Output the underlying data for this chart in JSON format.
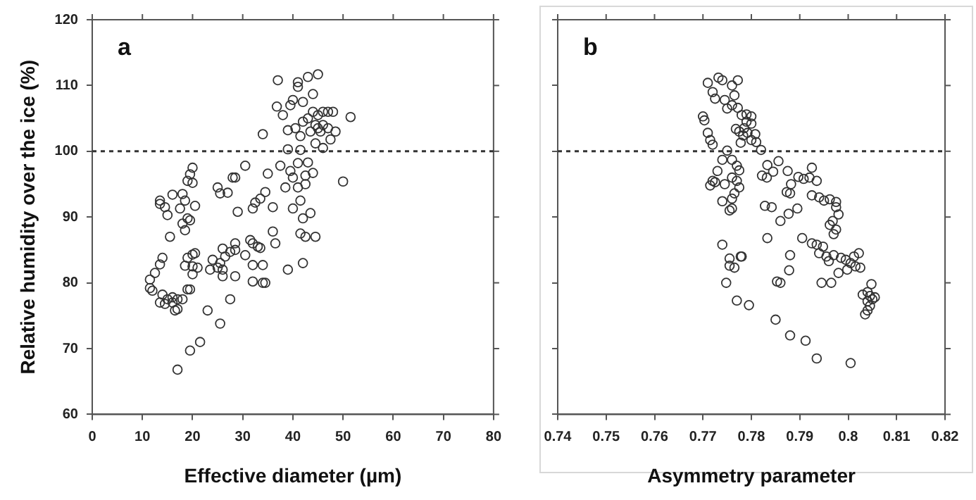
{
  "chart_data": [
    {
      "type": "scatter",
      "xlabel": "Effective diameter (µm)",
      "ylabel": "Relative humidity over the ice (%)",
      "annotations": [
        "a"
      ],
      "xlim": [
        0,
        80
      ],
      "xticks": [
        0,
        10,
        20,
        30,
        40,
        50,
        60,
        70,
        80
      ],
      "ylim": [
        60,
        120
      ],
      "yticks": [
        60,
        70,
        80,
        90,
        100,
        110,
        120
      ],
      "grid": false,
      "legend": false,
      "marker": "circle",
      "ref_lines": [
        {
          "axis": "y",
          "value": 100,
          "line_style": "dashed",
          "color": "#333333"
        }
      ],
      "series": [
        {
          "color": "#333333",
          "x": [
            37,
            41,
            43,
            45,
            41,
            44,
            36.8,
            38,
            39.5,
            40,
            42,
            43,
            44,
            45,
            46,
            47,
            48,
            51.5,
            34,
            39,
            40.5,
            42,
            43.5,
            44.5,
            45,
            45.5,
            46,
            47,
            48.5,
            47.5,
            44.5,
            41.5,
            39,
            41.5,
            46,
            37.5,
            39.5,
            41,
            43,
            44,
            42.5,
            40,
            38.5,
            41,
            42.5,
            35,
            30.5,
            50,
            36,
            40,
            41.5,
            42,
            43.5,
            41.5,
            42.5,
            44.5,
            36,
            36.5,
            39,
            42,
            25,
            25.5,
            27,
            28,
            28.5,
            29,
            32,
            32.5,
            33.5,
            34.5,
            31.5,
            32,
            33,
            33.5,
            30.5,
            28.5,
            28.5,
            27.5,
            26,
            26.5,
            25.5,
            24,
            23.5,
            25,
            26,
            26,
            28.5,
            32,
            34,
            32,
            34,
            34.5,
            27.5,
            23,
            25.5,
            21.5,
            19.5,
            17,
            13.5,
            13.5,
            14.5,
            15,
            16,
            17.5,
            18,
            18.5,
            19,
            19.5,
            20,
            20,
            20.5,
            18,
            19,
            19.5,
            18.5,
            15.5,
            20,
            20.5,
            19,
            18.5,
            20,
            20,
            21,
            14,
            13.5,
            12.5,
            11.5,
            11.5,
            12,
            13.5,
            14,
            15,
            16,
            16,
            17,
            18,
            19,
            19.5,
            17,
            16.5,
            14.5
          ],
          "values": [
            110.8,
            110.5,
            111.3,
            111.7,
            109.8,
            108.7,
            106.8,
            105.5,
            107,
            107.8,
            107.5,
            105,
            106,
            105.5,
            106,
            106,
            106,
            105.2,
            102.6,
            103.2,
            103.5,
            104.5,
            103,
            104,
            103.5,
            103,
            104,
            103.5,
            103,
            101.8,
            101.2,
            102.3,
            100.3,
            100.2,
            100.5,
            97.8,
            97,
            98.2,
            98.3,
            96.7,
            96.3,
            96,
            94.5,
            94.5,
            95,
            96.6,
            97.8,
            95.4,
            91.5,
            91.3,
            92.5,
            89.8,
            90.6,
            87.5,
            87,
            87,
            87.8,
            86,
            82,
            83,
            94.5,
            93.6,
            93.7,
            96,
            96,
            90.8,
            91.3,
            92.2,
            92.8,
            93.8,
            86.5,
            86,
            85.5,
            85.3,
            84.2,
            86,
            85,
            84.7,
            85.2,
            84,
            83,
            83.5,
            82,
            82.3,
            82,
            81,
            81,
            82.7,
            82.7,
            80.2,
            80,
            80,
            77.5,
            75.8,
            73.8,
            71,
            69.7,
            66.8,
            92.5,
            92,
            91.5,
            90.3,
            93.4,
            91.3,
            93.5,
            92.5,
            95.5,
            96.5,
            97.5,
            95.2,
            91.7,
            89,
            89.8,
            89.5,
            88,
            87,
            84.3,
            84.5,
            83.8,
            82.6,
            82.5,
            81.3,
            82.3,
            83.8,
            82.8,
            81.5,
            80.5,
            79.2,
            78.8,
            77,
            78.2,
            77.5,
            77.8,
            77,
            77.5,
            77.5,
            79,
            79,
            76,
            75.8,
            76.8
          ]
        }
      ]
    },
    {
      "type": "scatter",
      "xlabel": "Asymmetry parameter",
      "annotations": [
        "b"
      ],
      "xlim": [
        0.74,
        0.82
      ],
      "xticks": [
        0.74,
        0.75,
        0.76,
        0.77,
        0.78,
        0.79,
        0.8,
        0.81,
        0.82
      ],
      "ylim": [
        60,
        120
      ],
      "yticks": [
        60,
        70,
        80,
        90,
        100,
        110,
        120
      ],
      "tick_labels": "x",
      "grid": false,
      "legend": false,
      "marker": "circle",
      "ref_lines": [
        {
          "axis": "y",
          "value": 100,
          "line_style": "dashed",
          "color": "#333333"
        }
      ],
      "series": [
        {
          "color": "#333333",
          "x": [
            0.771,
            0.7732,
            0.774,
            0.776,
            0.7772,
            0.772,
            0.7725,
            0.7745,
            0.7765,
            0.776,
            0.775,
            0.7772,
            0.77,
            0.7703,
            0.778,
            0.779,
            0.78,
            0.779,
            0.78,
            0.7768,
            0.7775,
            0.7785,
            0.7792,
            0.7783,
            0.7808,
            0.78,
            0.7778,
            0.771,
            0.7715,
            0.772,
            0.781,
            0.782,
            0.775,
            0.774,
            0.776,
            0.777,
            0.7775,
            0.773,
            0.772,
            0.7725,
            0.7715,
            0.7745,
            0.776,
            0.777,
            0.7775,
            0.7765,
            0.774,
            0.776,
            0.776,
            0.7755,
            0.7833,
            0.7822,
            0.7832,
            0.7845,
            0.7856,
            0.7875,
            0.7882,
            0.7873,
            0.788,
            0.7897,
            0.7908,
            0.792,
            0.7925,
            0.7935,
            0.7925,
            0.794,
            0.795,
            0.7962,
            0.7975,
            0.7975,
            0.798,
            0.7968,
            0.7962,
            0.7975,
            0.797,
            0.7828,
            0.7842,
            0.786,
            0.7877,
            0.7895,
            0.7833,
            0.7905,
            0.7925,
            0.7935,
            0.7948,
            0.794,
            0.7955,
            0.796,
            0.797,
            0.7985,
            0.7995,
            0.8005,
            0.8012,
            0.8022,
            0.8015,
            0.8025,
            0.7998,
            0.798,
            0.7965,
            0.7945,
            0.788,
            0.7878,
            0.786,
            0.7853,
            0.804,
            0.8045,
            0.805,
            0.8055,
            0.804,
            0.8045,
            0.804,
            0.8035,
            0.8048,
            0.803,
            0.774,
            0.7755,
            0.7765,
            0.7755,
            0.7778,
            0.778,
            0.7748,
            0.777,
            0.7795,
            0.785,
            0.788,
            0.7912,
            0.7935,
            0.8005
          ],
          "values": [
            110.4,
            111.2,
            110.8,
            110,
            110.8,
            109,
            108,
            107.8,
            108.5,
            107,
            106.5,
            106.6,
            105.3,
            104.7,
            105.5,
            105.6,
            105.3,
            104.5,
            104.2,
            103.4,
            103,
            103.5,
            102.8,
            102.4,
            102.6,
            101.7,
            101.3,
            102.8,
            101.7,
            101,
            101.4,
            100.2,
            100.1,
            98.7,
            98.7,
            97.8,
            97.1,
            97,
            95.5,
            95.3,
            94.8,
            95,
            96,
            95.5,
            94.5,
            93.6,
            92.4,
            92.8,
            91.3,
            91,
            97.9,
            96.3,
            96,
            96.9,
            98.5,
            97,
            95,
            93.8,
            93.6,
            96.1,
            95.8,
            96,
            97.5,
            95.5,
            93.3,
            93,
            92.5,
            92.7,
            92.3,
            91.5,
            90.4,
            89.4,
            88.8,
            88.1,
            87.4,
            91.7,
            91.5,
            89.4,
            90.5,
            91.3,
            86.8,
            86.8,
            86,
            85.8,
            85.5,
            84.5,
            84,
            83.3,
            84.2,
            83.8,
            83.5,
            83,
            84,
            84.5,
            82.5,
            82.3,
            82,
            81.5,
            80,
            80,
            84.2,
            81.9,
            80,
            80.2,
            78.6,
            78,
            77.5,
            77.8,
            77.2,
            76.5,
            75.8,
            75.2,
            79.8,
            78.2,
            85.8,
            83.7,
            82.3,
            82.6,
            84,
            84,
            80,
            77.3,
            76.6,
            74.4,
            72,
            71.2,
            68.5,
            67.8
          ]
        }
      ]
    }
  ]
}
